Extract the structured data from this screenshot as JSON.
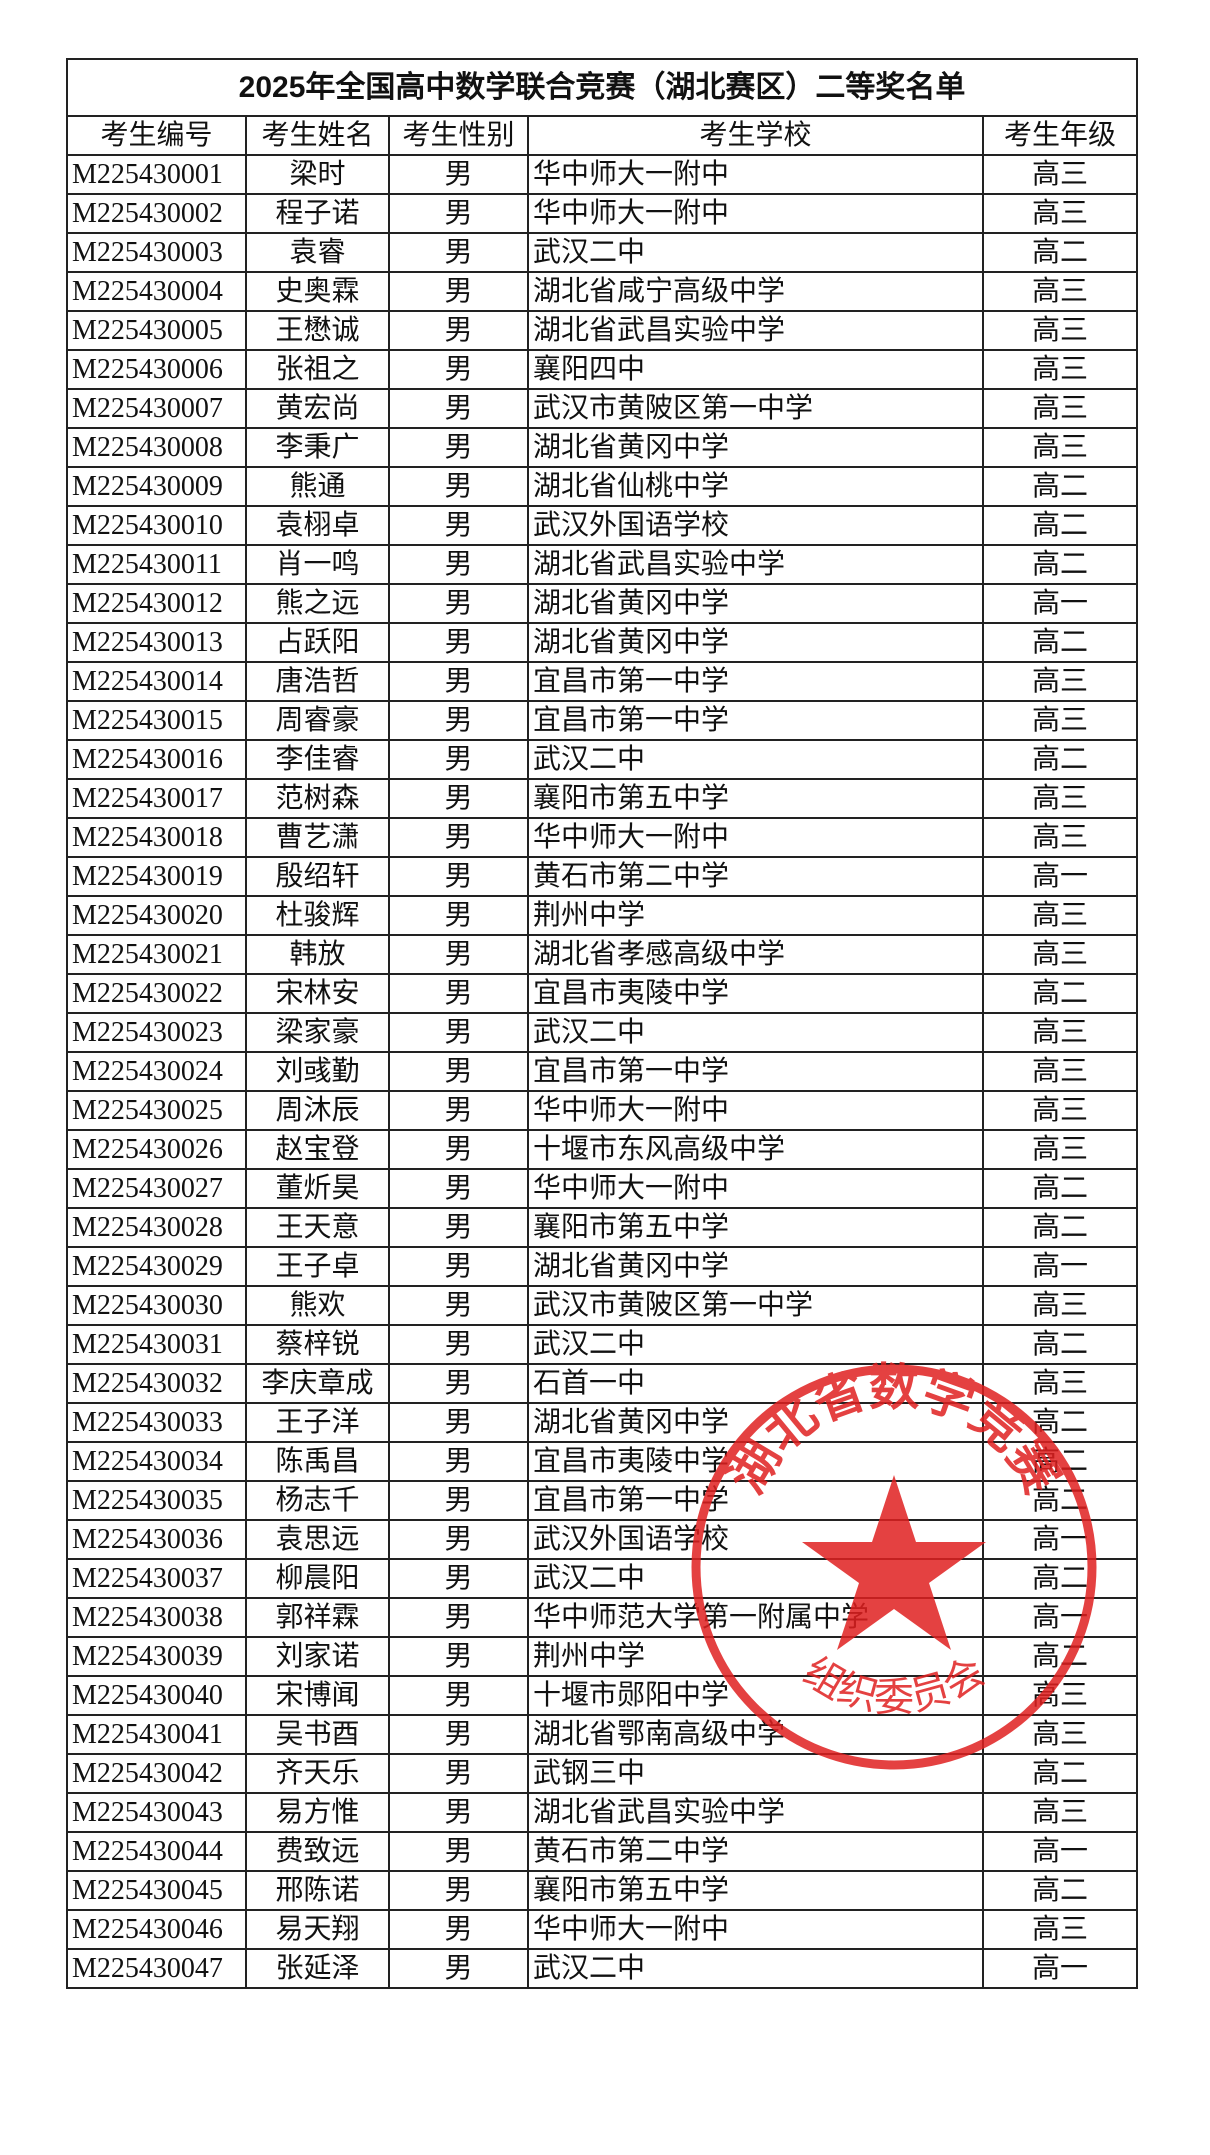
{
  "table": {
    "title": "2025年全国高中数学联合竞赛（湖北赛区）二等奖名单",
    "columns": [
      "考生编号",
      "考生姓名",
      "考生性别",
      "考生学校",
      "考生年级"
    ],
    "rows": [
      [
        "M225430001",
        "梁时",
        "男",
        "华中师大一附中",
        "高三"
      ],
      [
        "M225430002",
        "程子诺",
        "男",
        "华中师大一附中",
        "高三"
      ],
      [
        "M225430003",
        "袁睿",
        "男",
        "武汉二中",
        "高二"
      ],
      [
        "M225430004",
        "史奥霖",
        "男",
        "湖北省咸宁高级中学",
        "高三"
      ],
      [
        "M225430005",
        "王懋诚",
        "男",
        "湖北省武昌实验中学",
        "高三"
      ],
      [
        "M225430006",
        "张祖之",
        "男",
        "襄阳四中",
        "高三"
      ],
      [
        "M225430007",
        "黄宏尚",
        "男",
        "武汉市黄陂区第一中学",
        "高三"
      ],
      [
        "M225430008",
        "李秉广",
        "男",
        "湖北省黄冈中学",
        "高三"
      ],
      [
        "M225430009",
        "熊通",
        "男",
        "湖北省仙桃中学",
        "高二"
      ],
      [
        "M225430010",
        "袁栩卓",
        "男",
        "武汉外国语学校",
        "高二"
      ],
      [
        "M225430011",
        "肖一鸣",
        "男",
        "湖北省武昌实验中学",
        "高二"
      ],
      [
        "M225430012",
        "熊之远",
        "男",
        "湖北省黄冈中学",
        "高一"
      ],
      [
        "M225430013",
        "占跃阳",
        "男",
        "湖北省黄冈中学",
        "高二"
      ],
      [
        "M225430014",
        "唐浩哲",
        "男",
        "宜昌市第一中学",
        "高三"
      ],
      [
        "M225430015",
        "周睿豪",
        "男",
        "宜昌市第一中学",
        "高三"
      ],
      [
        "M225430016",
        "李佳睿",
        "男",
        "武汉二中",
        "高二"
      ],
      [
        "M225430017",
        "范树森",
        "男",
        "襄阳市第五中学",
        "高三"
      ],
      [
        "M225430018",
        "曹艺潇",
        "男",
        "华中师大一附中",
        "高三"
      ],
      [
        "M225430019",
        "殷绍轩",
        "男",
        "黄石市第二中学",
        "高一"
      ],
      [
        "M225430020",
        "杜骏辉",
        "男",
        "荆州中学",
        "高三"
      ],
      [
        "M225430021",
        "韩放",
        "男",
        "湖北省孝感高级中学",
        "高三"
      ],
      [
        "M225430022",
        "宋林安",
        "男",
        "宜昌市夷陵中学",
        "高二"
      ],
      [
        "M225430023",
        "梁家豪",
        "男",
        "武汉二中",
        "高三"
      ],
      [
        "M225430024",
        "刘彧勤",
        "男",
        "宜昌市第一中学",
        "高三"
      ],
      [
        "M225430025",
        "周沐辰",
        "男",
        "华中师大一附中",
        "高三"
      ],
      [
        "M225430026",
        "赵宝登",
        "男",
        "十堰市东风高级中学",
        "高三"
      ],
      [
        "M225430027",
        "董炘昊",
        "男",
        "华中师大一附中",
        "高二"
      ],
      [
        "M225430028",
        "王天意",
        "男",
        "襄阳市第五中学",
        "高二"
      ],
      [
        "M225430029",
        "王子卓",
        "男",
        "湖北省黄冈中学",
        "高一"
      ],
      [
        "M225430030",
        "熊欢",
        "男",
        "武汉市黄陂区第一中学",
        "高三"
      ],
      [
        "M225430031",
        "蔡梓锐",
        "男",
        "武汉二中",
        "高二"
      ],
      [
        "M225430032",
        "李庆章成",
        "男",
        "石首一中",
        "高三"
      ],
      [
        "M225430033",
        "王子洋",
        "男",
        "湖北省黄冈中学",
        "高二"
      ],
      [
        "M225430034",
        "陈禹昌",
        "男",
        "宜昌市夷陵中学",
        "高二"
      ],
      [
        "M225430035",
        "杨志千",
        "男",
        "宜昌市第一中学",
        "高二"
      ],
      [
        "M225430036",
        "袁思远",
        "男",
        "武汉外国语学校",
        "高一"
      ],
      [
        "M225430037",
        "柳晨阳",
        "男",
        "武汉二中",
        "高二"
      ],
      [
        "M225430038",
        "郭祥霖",
        "男",
        "华中师范大学第一附属中学",
        "高一"
      ],
      [
        "M225430039",
        "刘家诺",
        "男",
        "荆州中学",
        "高二"
      ],
      [
        "M225430040",
        "宋博闻",
        "男",
        "十堰市郧阳中学",
        "高三"
      ],
      [
        "M225430041",
        "吴书酉",
        "男",
        "湖北省鄂南高级中学",
        "高三"
      ],
      [
        "M225430042",
        "齐天乐",
        "男",
        "武钢三中",
        "高二"
      ],
      [
        "M225430043",
        "易方惟",
        "男",
        "湖北省武昌实验中学",
        "高三"
      ],
      [
        "M225430044",
        "费致远",
        "男",
        "黄石市第二中学",
        "高一"
      ],
      [
        "M225430045",
        "邢陈诺",
        "男",
        "襄阳市第五中学",
        "高二"
      ],
      [
        "M225430046",
        "易天翔",
        "男",
        "华中师大一附中",
        "高三"
      ],
      [
        "M225430047",
        "张延泽",
        "男",
        "武汉二中",
        "高一"
      ]
    ]
  },
  "stamp": {
    "top_text": "湖北省数学竞赛",
    "bottom_text": "组织委员会"
  }
}
